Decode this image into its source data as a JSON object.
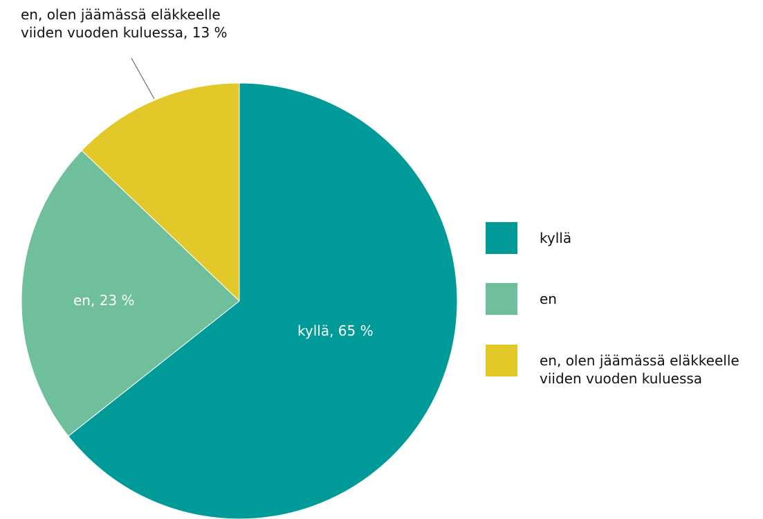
{
  "chart_data": {
    "type": "pie",
    "categories": [
      "kyllä",
      "en",
      "en, olen jäämässä eläkkeelle viiden vuoden kuluessa"
    ],
    "values": [
      65,
      23,
      13
    ],
    "value_labels": [
      "kyllä, 65 %",
      "en, 23 %",
      "en, olen jäämässä eläkkeelle viiden vuoden kuluessa, 13 %"
    ],
    "colors": [
      "#009b98",
      "#6fbf9c",
      "#e3c82a"
    ],
    "legend": "right"
  }
}
